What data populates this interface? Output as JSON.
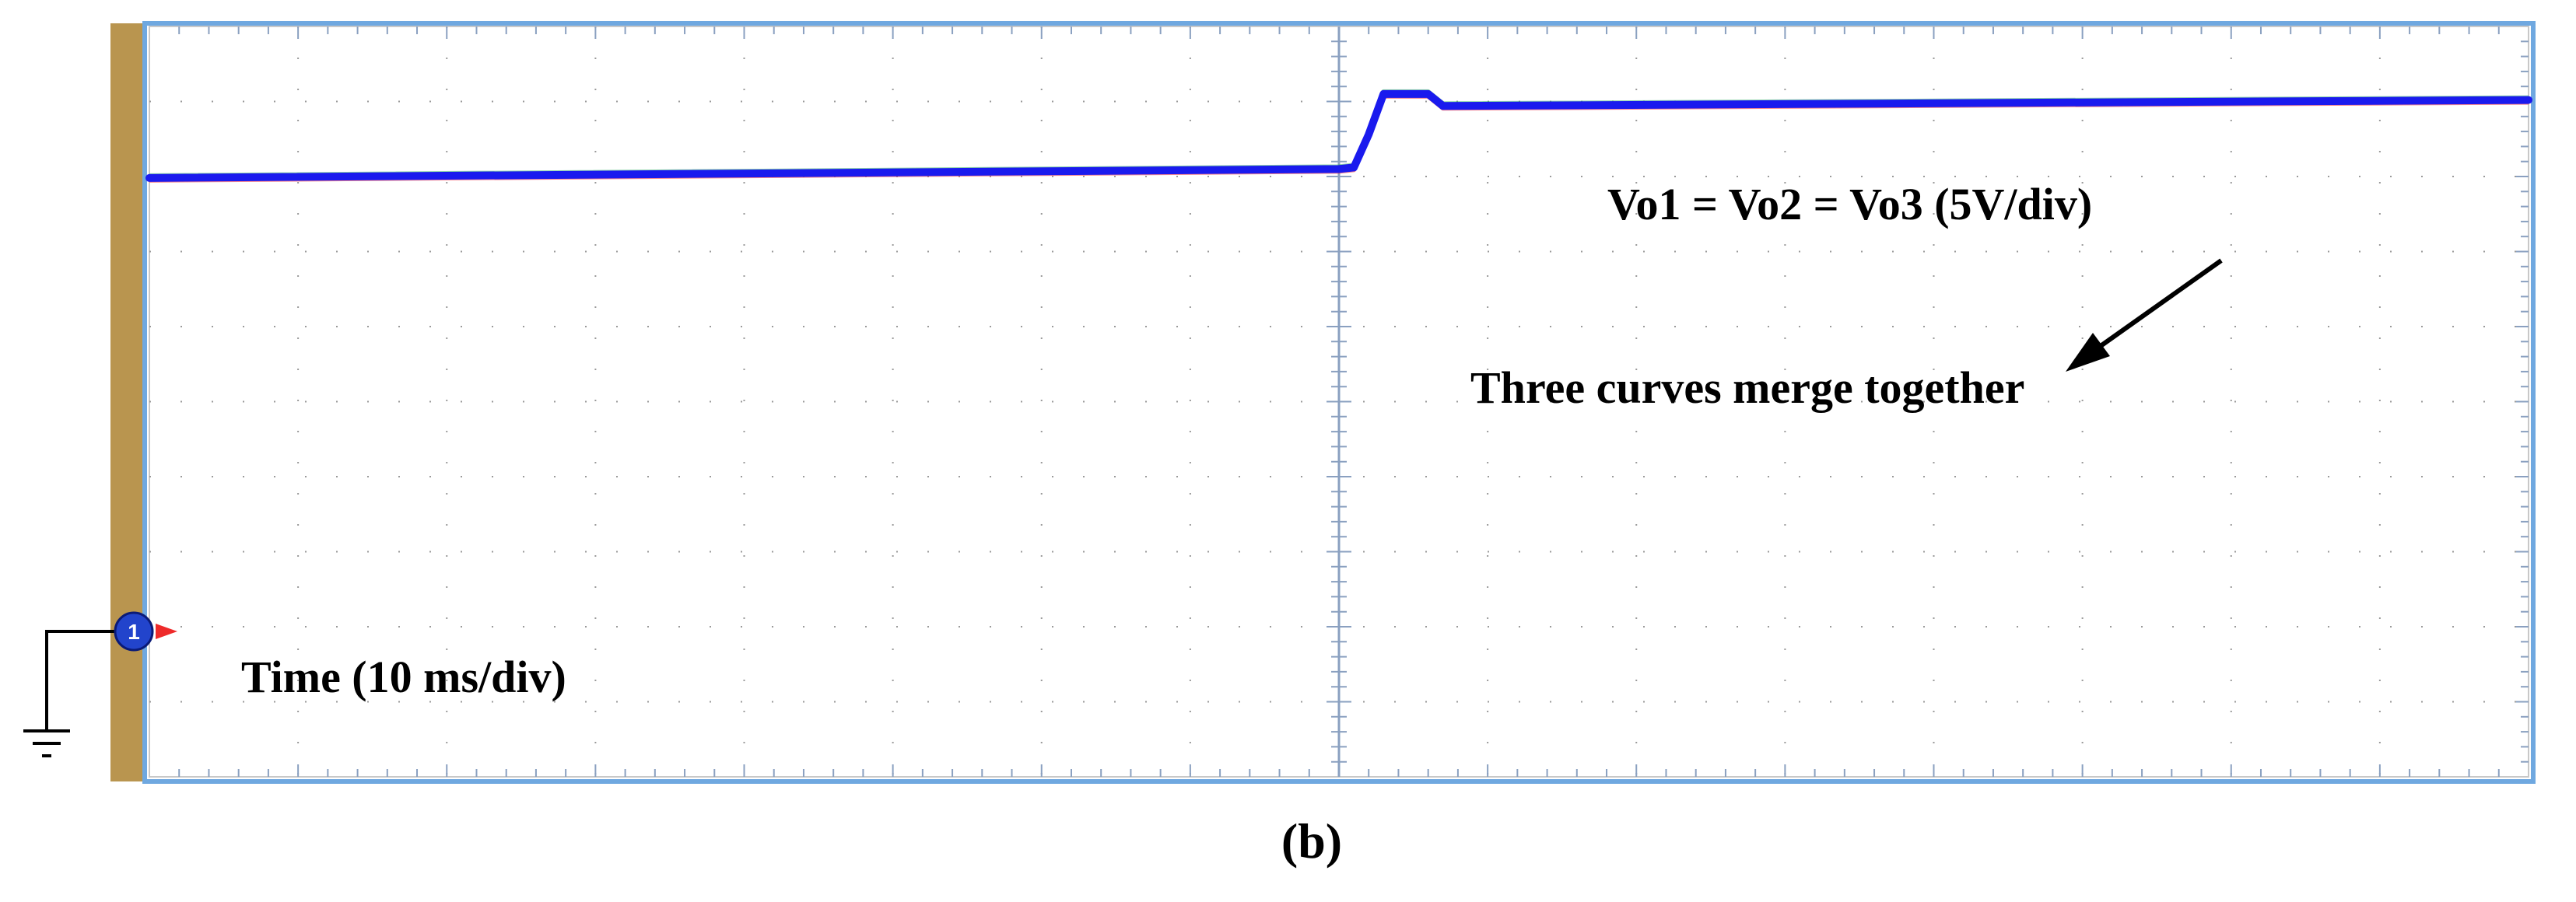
{
  "chart_data": {
    "type": "line",
    "title": "",
    "xlabel": "Time (10 ms/div)",
    "ylabel": "",
    "divisions": {
      "x": 8,
      "y": 5
    },
    "x_scale": "10 ms/div",
    "y_scale": "5V/div",
    "xlim": [
      0,
      8
    ],
    "ylim": [
      -1,
      4
    ],
    "grid": true,
    "series": [
      {
        "name": "Vo1 = Vo2 = Vo3 (5V/div)",
        "color": "#1a1aee",
        "x": [
          0.0,
          4.0,
          4.05,
          4.1,
          4.15,
          4.3,
          4.35,
          8.0
        ],
        "y": [
          2.99,
          3.05,
          3.06,
          3.28,
          3.55,
          3.55,
          3.47,
          3.51
        ]
      }
    ],
    "channel_marker": {
      "label": "1",
      "color": "#2244cc",
      "level": 0
    },
    "annotations": [
      {
        "text": "Three curves merge together",
        "arrow_to": {
          "x": 6.4,
          "y": 3.5
        }
      }
    ]
  },
  "caption": "(b)",
  "colors": {
    "bezel": "#b9954f",
    "frame_border": "#6fa8e0",
    "grid_dots": "#9a9a9a",
    "trace": "#1a1aee"
  }
}
